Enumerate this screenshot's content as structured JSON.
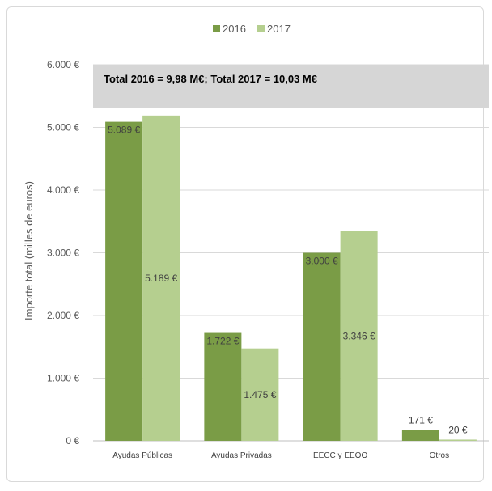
{
  "chart_data": {
    "type": "bar",
    "categories": [
      "Ayudas Públicas",
      "Ayudas Privadas",
      "EECC y EEOO",
      "Otros"
    ],
    "series": [
      {
        "name": "2016",
        "values": [
          5089,
          1722,
          3000,
          171
        ],
        "labels": [
          "5.089 €",
          "1.722 €",
          "3.000 €",
          "171 €"
        ]
      },
      {
        "name": "2017",
        "values": [
          5189,
          1475,
          3346,
          20
        ],
        "labels": [
          "5.189 €",
          "1.475 €",
          "3.346 €",
          "20 €"
        ]
      }
    ],
    "yticks": [
      "0 €",
      "1.000 €",
      "2.000 €",
      "3.000 €",
      "4.000 €",
      "5.000 €",
      "6.000 €"
    ],
    "ylabel": "Importe total (milles de euros)",
    "ylim": [
      0,
      6000
    ],
    "legend_position": "top-center",
    "annotation": "Total 2016 = 9,98 M€; Total 2017 =  10,03 M€",
    "grid": true
  },
  "colors": {
    "series_2016": "#7a9c46",
    "series_2017": "#b5cf8f",
    "banner": "#d6d6d6",
    "grid": "#d9d9d9",
    "axis": "#bfbfbf"
  }
}
